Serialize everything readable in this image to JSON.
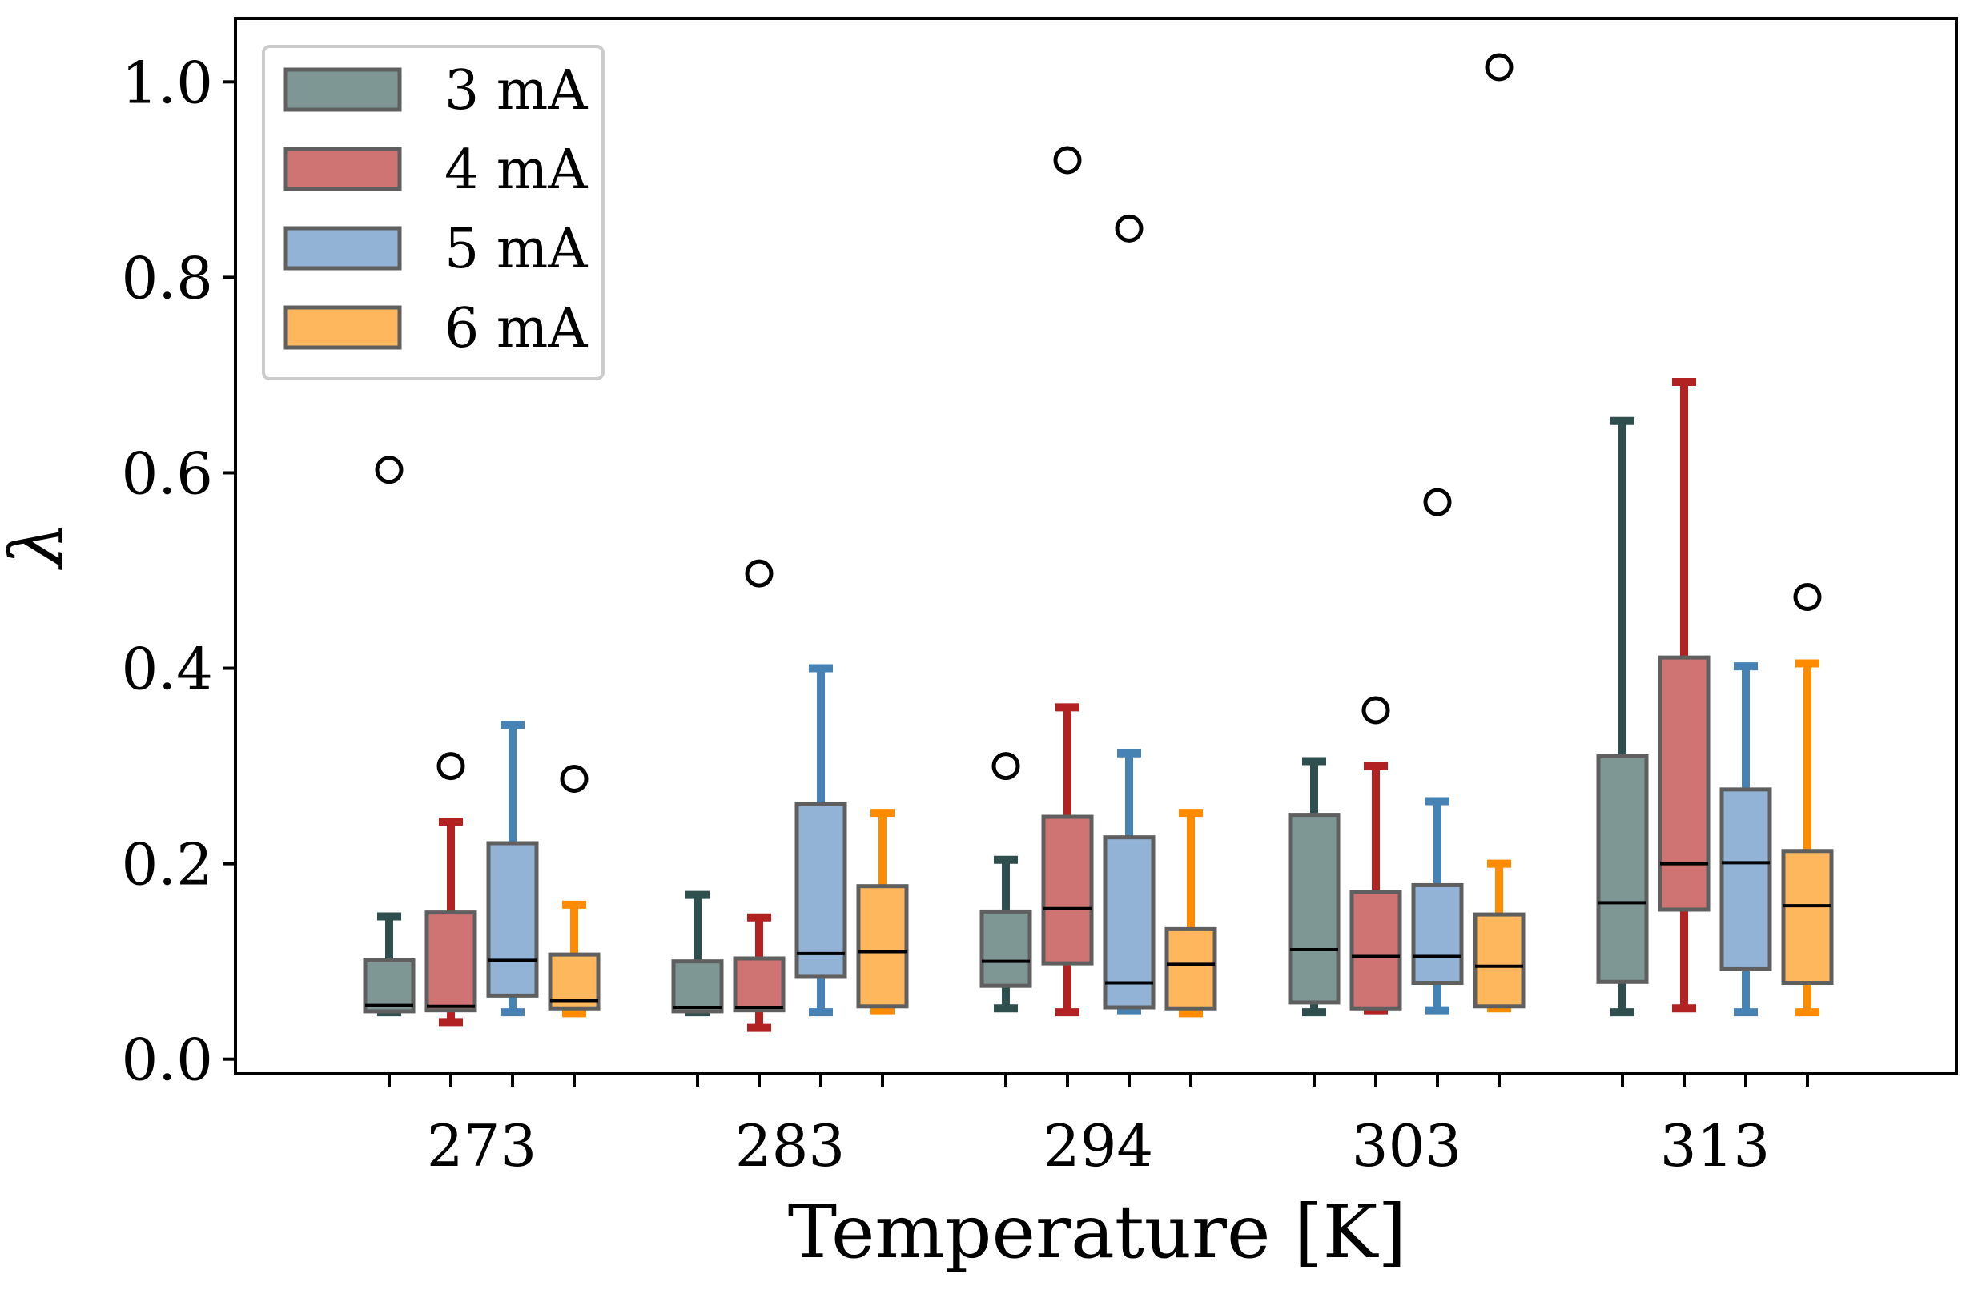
{
  "chart_data": {
    "type": "boxplot",
    "title": "",
    "xlabel": "Temperature [K]",
    "ylabel": "λ",
    "ylim": [
      -0.015,
      1.065
    ],
    "yticks": [
      0.0,
      0.2,
      0.4,
      0.6,
      0.8,
      1.0
    ],
    "ytick_labels": [
      "0.0",
      "0.2",
      "0.4",
      "0.6",
      "0.8",
      "1.0"
    ],
    "categories": [
      "273",
      "283",
      "294",
      "303",
      "313"
    ],
    "legend_position": "top-left",
    "series": [
      {
        "name": "3 mA",
        "fill": "#7e9794",
        "whisker_color": "#2f4f4f",
        "boxes": [
          {
            "whislo": 0.048,
            "q1": 0.049,
            "med": 0.055,
            "q3": 0.101,
            "whishi": 0.146,
            "fliers": [
              0.603
            ]
          },
          {
            "whislo": 0.048,
            "q1": 0.049,
            "med": 0.053,
            "q3": 0.1,
            "whishi": 0.168,
            "fliers": []
          },
          {
            "whislo": 0.052,
            "q1": 0.075,
            "med": 0.1,
            "q3": 0.151,
            "whishi": 0.204,
            "fliers": [
              0.3
            ]
          },
          {
            "whislo": 0.048,
            "q1": 0.058,
            "med": 0.112,
            "q3": 0.25,
            "whishi": 0.305,
            "fliers": []
          },
          {
            "whislo": 0.048,
            "q1": 0.079,
            "med": 0.16,
            "q3": 0.31,
            "whishi": 0.653,
            "fliers": []
          }
        ]
      },
      {
        "name": "4 mA",
        "fill": "#d07373",
        "whisker_color": "#b22222",
        "boxes": [
          {
            "whislo": 0.038,
            "q1": 0.05,
            "med": 0.054,
            "q3": 0.15,
            "whishi": 0.243,
            "fliers": [
              0.3
            ]
          },
          {
            "whislo": 0.032,
            "q1": 0.05,
            "med": 0.053,
            "q3": 0.103,
            "whishi": 0.145,
            "fliers": [
              0.497
            ]
          },
          {
            "whislo": 0.048,
            "q1": 0.098,
            "med": 0.154,
            "q3": 0.248,
            "whishi": 0.36,
            "fliers": [
              0.92
            ]
          },
          {
            "whislo": 0.05,
            "q1": 0.052,
            "med": 0.105,
            "q3": 0.171,
            "whishi": 0.3,
            "fliers": [
              0.357
            ]
          },
          {
            "whislo": 0.052,
            "q1": 0.153,
            "med": 0.2,
            "q3": 0.411,
            "whishi": 0.693,
            "fliers": []
          }
        ]
      },
      {
        "name": "5 mA",
        "fill": "#92b3d5",
        "whisker_color": "#4682b4",
        "boxes": [
          {
            "whislo": 0.048,
            "q1": 0.065,
            "med": 0.101,
            "q3": 0.221,
            "whishi": 0.342,
            "fliers": []
          },
          {
            "whislo": 0.048,
            "q1": 0.085,
            "med": 0.108,
            "q3": 0.261,
            "whishi": 0.4,
            "fliers": []
          },
          {
            "whislo": 0.05,
            "q1": 0.053,
            "med": 0.078,
            "q3": 0.227,
            "whishi": 0.313,
            "fliers": [
              0.85
            ]
          },
          {
            "whislo": 0.05,
            "q1": 0.078,
            "med": 0.105,
            "q3": 0.178,
            "whishi": 0.264,
            "fliers": [
              0.57
            ]
          },
          {
            "whislo": 0.048,
            "q1": 0.092,
            "med": 0.201,
            "q3": 0.276,
            "whishi": 0.402,
            "fliers": []
          }
        ]
      },
      {
        "name": "6 mA",
        "fill": "#ffb75e",
        "whisker_color": "#ff8c00",
        "boxes": [
          {
            "whislo": 0.047,
            "q1": 0.052,
            "med": 0.06,
            "q3": 0.107,
            "whishi": 0.158,
            "fliers": [
              0.287
            ]
          },
          {
            "whislo": 0.05,
            "q1": 0.054,
            "med": 0.11,
            "q3": 0.177,
            "whishi": 0.252,
            "fliers": []
          },
          {
            "whislo": 0.047,
            "q1": 0.052,
            "med": 0.097,
            "q3": 0.133,
            "whishi": 0.252,
            "fliers": []
          },
          {
            "whislo": 0.052,
            "q1": 0.054,
            "med": 0.095,
            "q3": 0.148,
            "whishi": 0.2,
            "fliers": [
              1.015
            ]
          },
          {
            "whislo": 0.048,
            "q1": 0.078,
            "med": 0.157,
            "q3": 0.213,
            "whishi": 0.405,
            "fliers": [
              0.473
            ]
          }
        ]
      }
    ]
  }
}
